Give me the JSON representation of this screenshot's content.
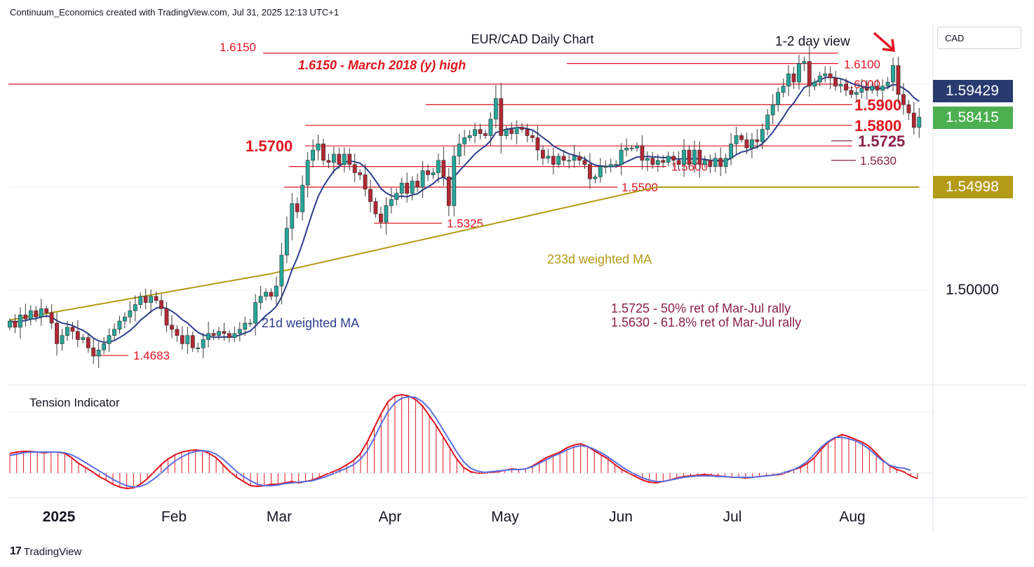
{
  "header": "Continuum_Economics created with TradingView.com, Jul 31, 2025 12:13 UTC+1",
  "brand": "TradingView",
  "currency_label": "CAD",
  "colors": {
    "up": "#26a69a",
    "down": "#b22833",
    "level": "#e0141e",
    "fib": "#8b1f4a",
    "ma21": "#2b3d8f",
    "ma233": "#b39a17",
    "tension_fill": "#e0141e",
    "tension_line": "#5b6ee1",
    "badge_ma21": "#283a6e",
    "badge_price": "#4caf50",
    "badge_ma233": "#b39a17"
  },
  "price_badges": {
    "ma21": "1.59429",
    "price": "1.58415",
    "ma233": "1.54998"
  },
  "axis": {
    "y_tick": "1.50000",
    "months": [
      "2025",
      "Feb",
      "Mar",
      "Apr",
      "May",
      "Jun",
      "Jul",
      "Aug"
    ]
  },
  "chart_data": {
    "type": "candlestick",
    "title": "EUR/CAD Daily Chart",
    "view_note": "1-2 day view",
    "view_arrow": "arrow-down-right",
    "ylim": [
      1.442,
      1.637
    ],
    "levels": [
      {
        "label": "1.6150",
        "value": 1.615
      },
      {
        "label": "1.6100",
        "value": 1.61
      },
      {
        "label": "1.6000",
        "value": 1.6
      },
      {
        "label": "1.5900",
        "value": 1.59
      },
      {
        "label": "1.5800",
        "value": 1.58
      },
      {
        "label": "1.5725",
        "value": 1.5725
      },
      {
        "label": "1.5700",
        "value": 1.57
      },
      {
        "label": "1.5630",
        "value": 1.563
      },
      {
        "label": "1.5600",
        "value": 1.56
      },
      {
        "label": "1.5500",
        "value": 1.55
      },
      {
        "label": "1.5325",
        "value": 1.5325
      },
      {
        "label": "1.4683",
        "value": 1.4683
      }
    ],
    "annotations": [
      "1.6150 - March 2018 (y) high",
      "233d weighted MA",
      "21d weighted MA",
      "1.5725 - 50% ret of Mar-Jul rally",
      "1.5630 - 61.8% ret of Mar-Jul rally"
    ],
    "closes": [
      1.485,
      1.482,
      1.488,
      1.486,
      1.49,
      1.487,
      1.491,
      1.489,
      1.484,
      1.474,
      1.478,
      1.482,
      1.48,
      1.476,
      1.477,
      1.472,
      1.468,
      1.471,
      1.474,
      1.478,
      1.481,
      1.485,
      1.487,
      1.49,
      1.493,
      1.497,
      1.494,
      1.497,
      1.495,
      1.491,
      1.483,
      1.481,
      1.478,
      1.474,
      1.478,
      1.472,
      1.472,
      1.476,
      1.479,
      1.478,
      1.48,
      1.479,
      1.477,
      1.479,
      1.481,
      1.484,
      1.484,
      1.494,
      1.497,
      1.499,
      1.497,
      1.502,
      1.517,
      1.53,
      1.542,
      1.538,
      1.551,
      1.563,
      1.568,
      1.571,
      1.563,
      1.562,
      1.566,
      1.561,
      1.566,
      1.561,
      1.557,
      1.556,
      1.549,
      1.543,
      1.537,
      1.533,
      1.541,
      1.544,
      1.547,
      1.552,
      1.547,
      1.553,
      1.55,
      1.558,
      1.556,
      1.557,
      1.563,
      1.555,
      1.541,
      1.565,
      1.571,
      1.574,
      1.575,
      1.578,
      1.576,
      1.575,
      1.583,
      1.593,
      1.575,
      1.578,
      1.576,
      1.579,
      1.578,
      1.575,
      1.574,
      1.568,
      1.564,
      1.565,
      1.561,
      1.565,
      1.563,
      1.563,
      1.565,
      1.563,
      1.561,
      1.554,
      1.555,
      1.56,
      1.56,
      1.561,
      1.561,
      1.568,
      1.569,
      1.569,
      1.57,
      1.563,
      1.564,
      1.561,
      1.563,
      1.562,
      1.565,
      1.563,
      1.561,
      1.568,
      1.561,
      1.568,
      1.561,
      1.563,
      1.56,
      1.564,
      1.56,
      1.564,
      1.571,
      1.575,
      1.573,
      1.569,
      1.573,
      1.572,
      1.578,
      1.585,
      1.59,
      1.596,
      1.599,
      1.605,
      1.601,
      1.61,
      1.611,
      1.599,
      1.601,
      1.604,
      1.605,
      1.603,
      1.599,
      1.6,
      1.597,
      1.595,
      1.596,
      1.598,
      1.597,
      1.599,
      1.597,
      1.599,
      1.601,
      1.609,
      1.595,
      1.59,
      1.586,
      1.579,
      1.584
    ]
  },
  "tension": {
    "title": "Tension Indicator",
    "hist": [
      0.28,
      0.3,
      0.31,
      0.31,
      0.3,
      0.29,
      0.3,
      0.3,
      0.28,
      0.22,
      0.14,
      0.08,
      0.02,
      -0.05,
      -0.1,
      -0.16,
      -0.2,
      -0.22,
      -0.21,
      -0.16,
      -0.08,
      0.02,
      0.12,
      0.2,
      0.26,
      0.3,
      0.32,
      0.33,
      0.32,
      0.28,
      0.22,
      0.12,
      0.02,
      -0.06,
      -0.12,
      -0.18,
      -0.19,
      -0.18,
      -0.16,
      -0.16,
      -0.14,
      -0.12,
      -0.14,
      -0.12,
      -0.1,
      -0.06,
      -0.02,
      0.02,
      0.06,
      0.12,
      0.18,
      0.28,
      0.45,
      0.65,
      0.85,
      1.02,
      1.1,
      1.12,
      1.1,
      1.05,
      0.96,
      0.82,
      0.68,
      0.52,
      0.36,
      0.2,
      0.08,
      0.02,
      0.0,
      0.0,
      0.01,
      0.02,
      0.04,
      0.06,
      0.05,
      0.06,
      0.1,
      0.16,
      0.22,
      0.26,
      0.3,
      0.36,
      0.4,
      0.42,
      0.38,
      0.32,
      0.26,
      0.2,
      0.12,
      0.05,
      0.0,
      -0.05,
      -0.1,
      -0.13,
      -0.14,
      -0.12,
      -0.1,
      -0.07,
      -0.05,
      -0.04,
      -0.03,
      -0.02,
      -0.03,
      -0.04,
      -0.05,
      -0.06,
      -0.06,
      -0.07,
      -0.06,
      -0.05,
      -0.04,
      -0.03,
      -0.02,
      0.01,
      0.05,
      0.08,
      0.14,
      0.22,
      0.34,
      0.44,
      0.5,
      0.55,
      0.52,
      0.48,
      0.44,
      0.38,
      0.28,
      0.18,
      0.1,
      0.05,
      0.02,
      -0.04,
      -0.08
    ],
    "line": [
      0.25,
      0.27,
      0.29,
      0.3,
      0.3,
      0.3,
      0.3,
      0.3,
      0.29,
      0.26,
      0.21,
      0.15,
      0.09,
      0.03,
      -0.03,
      -0.09,
      -0.14,
      -0.18,
      -0.2,
      -0.19,
      -0.15,
      -0.08,
      0.0,
      0.09,
      0.17,
      0.23,
      0.28,
      0.31,
      0.32,
      0.31,
      0.27,
      0.2,
      0.11,
      0.02,
      -0.05,
      -0.11,
      -0.16,
      -0.18,
      -0.18,
      -0.17,
      -0.15,
      -0.14,
      -0.13,
      -0.12,
      -0.11,
      -0.08,
      -0.05,
      -0.01,
      0.03,
      0.07,
      0.12,
      0.2,
      0.32,
      0.5,
      0.7,
      0.88,
      1.0,
      1.07,
      1.09,
      1.08,
      1.02,
      0.92,
      0.78,
      0.62,
      0.46,
      0.3,
      0.16,
      0.07,
      0.03,
      0.01,
      0.02,
      0.03,
      0.04,
      0.05,
      0.05,
      0.06,
      0.09,
      0.14,
      0.19,
      0.24,
      0.28,
      0.33,
      0.37,
      0.39,
      0.38,
      0.34,
      0.29,
      0.23,
      0.16,
      0.09,
      0.03,
      -0.02,
      -0.07,
      -0.1,
      -0.12,
      -0.12,
      -0.1,
      -0.08,
      -0.06,
      -0.05,
      -0.04,
      -0.04,
      -0.04,
      -0.05,
      -0.05,
      -0.06,
      -0.06,
      -0.06,
      -0.06,
      -0.05,
      -0.04,
      -0.03,
      -0.01,
      0.02,
      0.05,
      0.1,
      0.17,
      0.27,
      0.37,
      0.45,
      0.51,
      0.51,
      0.49,
      0.46,
      0.41,
      0.34,
      0.25,
      0.17,
      0.11,
      0.08,
      0.07,
      0.04
    ]
  }
}
